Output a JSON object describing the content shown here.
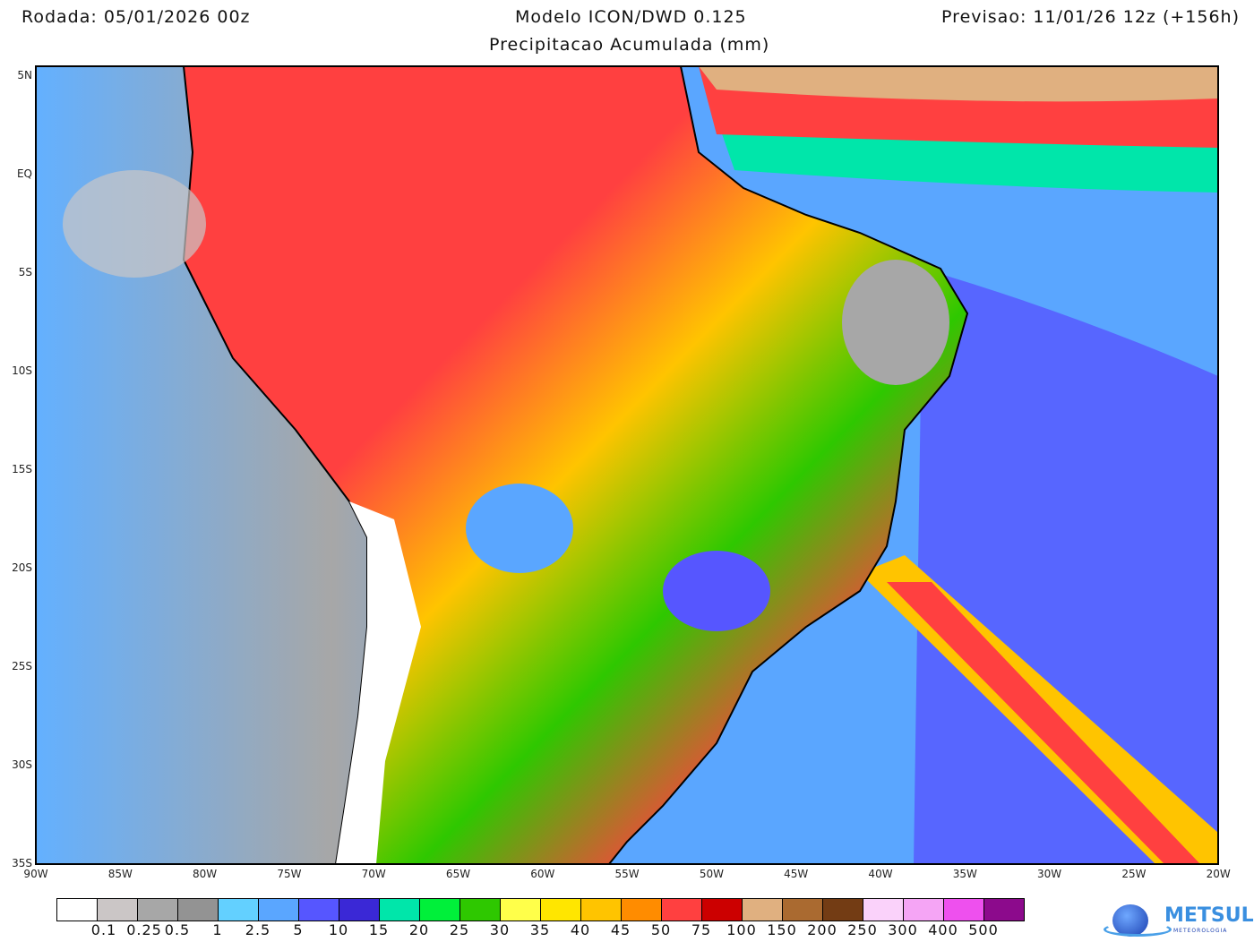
{
  "header": {
    "run": "Rodada: 05/01/2026 00z",
    "model": "Modelo ICON/DWD 0.125",
    "forecast": "Previsao: 11/01/26 12z (+156h)",
    "subtitle": "Precipitacao Acumulada (mm)"
  },
  "lat_ticks": [
    "5N",
    "EQ",
    "5S",
    "10S",
    "15S",
    "20S",
    "25S",
    "30S",
    "35S"
  ],
  "lon_ticks": [
    "90W",
    "85W",
    "80W",
    "75W",
    "70W",
    "65W",
    "60W",
    "55W",
    "50W",
    "45W",
    "40W",
    "35W",
    "30W",
    "25W",
    "20W"
  ],
  "legend": {
    "colors": [
      "#ffffff",
      "#cbc6c6",
      "#a7a7a7",
      "#939393",
      "#63d0ff",
      "#5aa6ff",
      "#5656ff",
      "#3a28d6",
      "#00e6aa",
      "#00f03a",
      "#2ec800",
      "#ffff4a",
      "#ffe600",
      "#ffc400",
      "#ff8c00",
      "#ff4040",
      "#cc0000",
      "#e0b080",
      "#aa6a30",
      "#733c14",
      "#fad2fa",
      "#f5a5f5",
      "#ee50ee",
      "#8c0a8c"
    ],
    "labels": [
      "0.1",
      "0.25",
      "0.5",
      "1",
      "2.5",
      "5",
      "10",
      "15",
      "20",
      "25",
      "30",
      "35",
      "40",
      "45",
      "50",
      "75",
      "100",
      "150",
      "200",
      "250",
      "300",
      "400",
      "500"
    ]
  },
  "logo": {
    "name": "METSUL",
    "sub": "METEOROLOGIA"
  }
}
